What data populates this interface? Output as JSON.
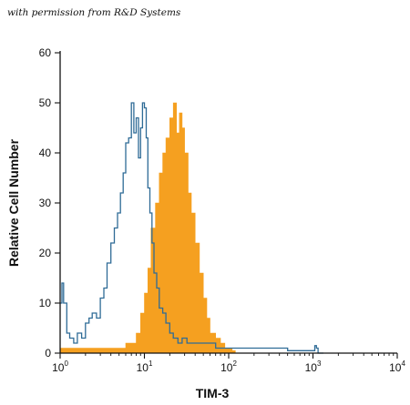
{
  "credit_text": "with permission from R&D Systems",
  "chart_data": {
    "type": "area",
    "xlabel": "TIM-3",
    "ylabel": "Relative Cell Number",
    "xscale": "log",
    "xlim": [
      1,
      10000
    ],
    "ylim": [
      0,
      60
    ],
    "x_ticks": [
      {
        "value": 1,
        "base": "10",
        "exp": "0"
      },
      {
        "value": 10,
        "base": "10",
        "exp": "1"
      },
      {
        "value": 100,
        "base": "10",
        "exp": "2"
      },
      {
        "value": 1000,
        "base": "10",
        "exp": "3"
      },
      {
        "value": 10000,
        "base": "10",
        "exp": "4"
      }
    ],
    "y_ticks": [
      0,
      10,
      20,
      30,
      40,
      50,
      60
    ],
    "colors": {
      "stained": "#f5a020",
      "control": "#2e6b96",
      "axis": "#111111"
    },
    "series": [
      {
        "style": "outline",
        "color": "#2e6b96",
        "x": [
          1.0,
          1.05,
          1.1,
          1.2,
          1.3,
          1.45,
          1.6,
          1.8,
          2.0,
          2.2,
          2.4,
          2.7,
          3.0,
          3.3,
          3.6,
          4.0,
          4.4,
          4.8,
          5.2,
          5.6,
          6.0,
          6.5,
          7.0,
          7.5,
          8.0,
          8.5,
          9.0,
          9.5,
          10.0,
          10.5,
          11.0,
          11.6,
          12.3,
          13.0,
          14.0,
          15.0,
          16.5,
          18.0,
          20.0,
          22.0,
          25.0,
          28.0,
          32.0,
          37.0,
          42.0,
          50.0,
          60.0,
          70.0,
          85.0,
          100.0,
          130.0,
          170.0,
          220.0,
          280.0,
          350.0,
          500.0,
          700.0,
          1000.0,
          1050.0,
          1100.0,
          1150.0,
          1300.0
        ],
        "y": [
          10,
          14,
          10,
          4,
          3,
          2,
          4,
          3,
          6,
          7,
          8,
          7,
          11,
          13,
          18,
          22,
          25,
          28,
          32,
          36,
          42,
          43,
          50,
          44,
          47,
          39,
          45,
          50,
          49,
          43,
          33,
          28,
          22,
          16,
          13,
          9,
          8,
          6,
          4,
          3,
          2,
          3,
          2,
          2,
          2,
          2,
          2,
          1,
          1,
          1,
          1,
          1,
          1,
          1,
          1,
          0.5,
          0.5,
          0.5,
          1.5,
          1,
          0,
          0
        ]
      },
      {
        "style": "filled",
        "color": "#f5a020",
        "x": [
          1.0,
          1.2,
          1.5,
          2.0,
          3.0,
          4.0,
          5.0,
          6.0,
          7.0,
          8.0,
          9.0,
          10.0,
          11.0,
          12.0,
          13.5,
          15.0,
          16.5,
          18.0,
          20.0,
          22.0,
          24.0,
          26.0,
          28.0,
          30.0,
          33.0,
          36.0,
          40.0,
          45.0,
          50.0,
          55.0,
          60.0,
          70.0,
          80.0,
          90.0,
          100.0,
          110.0,
          120.0
        ],
        "y": [
          1,
          1,
          1,
          1,
          1,
          1,
          1,
          2,
          2,
          4,
          8,
          12,
          17,
          25,
          30,
          36,
          40,
          43,
          47,
          50,
          44,
          48,
          45,
          40,
          32,
          28,
          22,
          16,
          11,
          7,
          4,
          3,
          2,
          1,
          1,
          0.5,
          0
        ]
      }
    ]
  }
}
